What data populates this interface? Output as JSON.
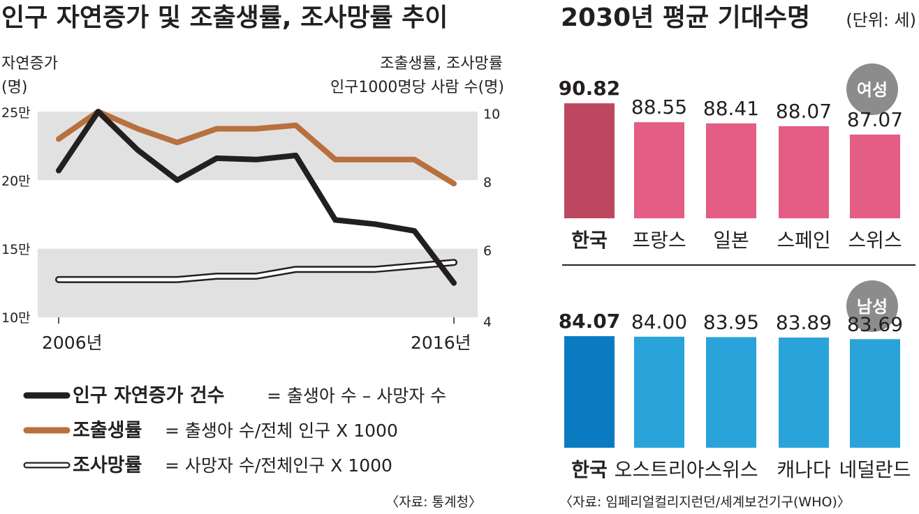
{
  "colors": {
    "band": "#e1e1e1",
    "natural_line": "#231f20",
    "birth_line": "#b8703e",
    "death_line_fill": "#ffffff",
    "female_highlight": "#bd4760",
    "female_bar": "#e35d84",
    "male_highlight": "#0a7bc1",
    "male_bar": "#29a3d9",
    "badge": "#8c8c8c"
  },
  "left_panel": {
    "title": "인구 자연증가 및 조출생률, 조사망률 추이",
    "left_axis_label_1": "자연증가",
    "left_axis_label_2": "(명)",
    "right_axis_label_1": "조출생률, 조사망률",
    "right_axis_label_2": "인구1000명당 사람 수(명)",
    "source": "〈자료: 통계청〉",
    "legend": [
      {
        "key": "natural",
        "name": "인구 자연증가 건수",
        "formula": "= 출생아 수 – 사망자 수"
      },
      {
        "key": "birth",
        "name": "조출생률",
        "formula": "= 출생아 수/전체 인구 X 1000"
      },
      {
        "key": "death",
        "name": "조사망률",
        "formula": "= 사망자 수/전체인구 X 1000"
      }
    ]
  },
  "chart_data": [
    {
      "type": "line",
      "title": "인구 자연증가 및 조출생률, 조사망률 추이",
      "x": [
        2006,
        2007,
        2008,
        2009,
        2010,
        2011,
        2012,
        2013,
        2014,
        2015,
        2016
      ],
      "x_tick_labels": [
        "2006년",
        "2016년"
      ],
      "left_axis": {
        "label": "자연증가 (명)",
        "range": [
          100000,
          250000
        ],
        "tick_labels": [
          "25만",
          "20만",
          "15만",
          "10만"
        ]
      },
      "right_axis": {
        "label": "조출생률, 조사망률 인구1000명당 사람 수(명)",
        "range": [
          4,
          10
        ],
        "tick_labels": [
          "10",
          "8",
          "6",
          "4"
        ]
      },
      "series": [
        {
          "name": "인구 자연증가 건수",
          "axis": "left",
          "values": [
            207000,
            250000,
            222000,
            200000,
            216000,
            215000,
            218000,
            171000,
            168000,
            163000,
            125000
          ]
        },
        {
          "name": "조출생률",
          "axis": "right",
          "values": [
            9.2,
            10.0,
            9.5,
            9.1,
            9.5,
            9.5,
            9.6,
            8.6,
            8.6,
            8.6,
            7.9
          ]
        },
        {
          "name": "조사망률",
          "axis": "right",
          "values": [
            5.1,
            5.1,
            5.1,
            5.1,
            5.2,
            5.2,
            5.4,
            5.4,
            5.4,
            5.5,
            5.6
          ]
        }
      ]
    },
    {
      "type": "bar",
      "title": "2030년 평균 기대수명",
      "unit": "(단위: 세)",
      "group": "여성",
      "categories": [
        "한국",
        "프랑스",
        "일본",
        "스페인",
        "스위스"
      ],
      "values": [
        90.82,
        88.55,
        88.41,
        88.07,
        87.07
      ],
      "value_labels": [
        "90.82",
        "88.55",
        "88.41",
        "88.07",
        "87.07"
      ],
      "ylim": [
        77,
        91
      ]
    },
    {
      "type": "bar",
      "title": "2030년 평균 기대수명",
      "unit": "(단위: 세)",
      "group": "남성",
      "categories": [
        "한국",
        "오스트리아",
        "스위스",
        "캐나다",
        "네덜란드"
      ],
      "values": [
        84.07,
        84.0,
        83.95,
        83.89,
        83.69
      ],
      "value_labels": [
        "84.07",
        "84.00",
        "83.95",
        "83.89",
        "83.69"
      ],
      "ylim": [
        70,
        84.07
      ]
    }
  ],
  "right_panel": {
    "title": "2030년 평균 기대수명",
    "unit": "(단위: 세)",
    "female_badge": "여성",
    "male_badge": "남성",
    "source": "〈자료: 임페리얼컬리지런던/세계보건기구(WHO)〉"
  }
}
